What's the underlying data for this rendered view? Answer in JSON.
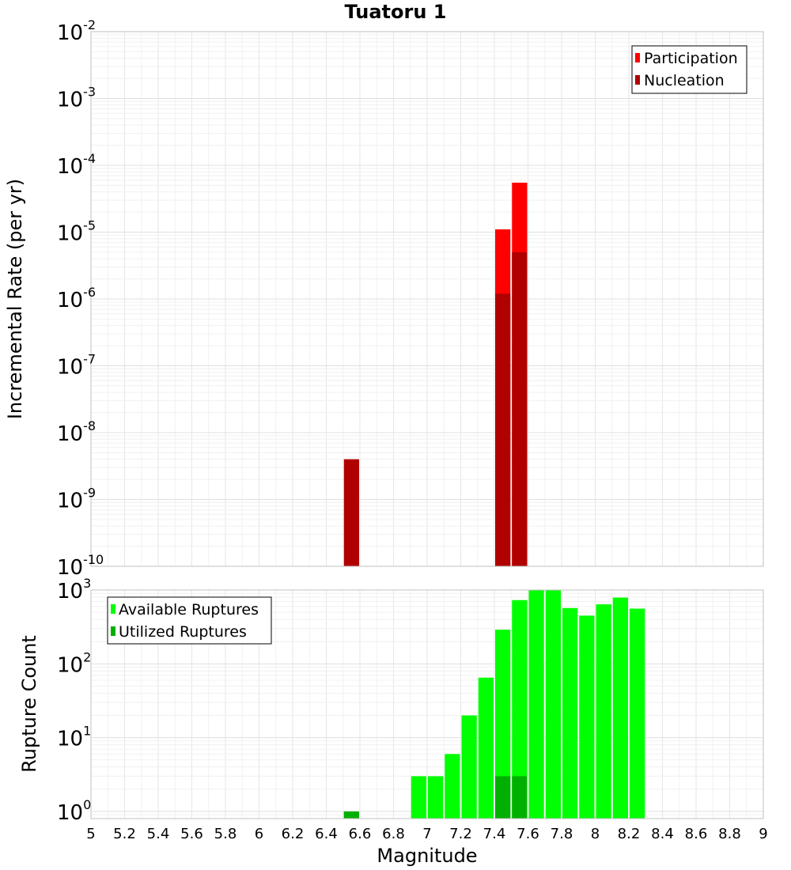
{
  "chart_data": [
    {
      "type": "bar",
      "title": "Tuatoru 1",
      "ylabel": "Incremental Rate (per yr)",
      "yscale": "log",
      "ylim": [
        1e-10,
        0.01
      ],
      "xlim": [
        5,
        9
      ],
      "bin_width": 0.1,
      "y_ticks": [
        {
          "base": "10",
          "exp": "-2",
          "value": 0.01
        },
        {
          "base": "10",
          "exp": "-3",
          "value": 0.001
        },
        {
          "base": "10",
          "exp": "-4",
          "value": 0.0001
        },
        {
          "base": "10",
          "exp": "-5",
          "value": 1e-05
        },
        {
          "base": "10",
          "exp": "-6",
          "value": 1e-06
        },
        {
          "base": "10",
          "exp": "-7",
          "value": 1e-07
        },
        {
          "base": "10",
          "exp": "-8",
          "value": 1e-08
        },
        {
          "base": "10",
          "exp": "-9",
          "value": 1e-09
        },
        {
          "base": "10",
          "exp": "-10",
          "value": 1e-10
        }
      ],
      "legend_position": "top-right",
      "series": [
        {
          "name": "Participation",
          "color": "#ff0000",
          "points": [
            {
              "x": 7.45,
              "y": 1.1e-05
            },
            {
              "x": 7.55,
              "y": 5.5e-05
            }
          ]
        },
        {
          "name": "Nucleation",
          "color": "#b00000",
          "points": [
            {
              "x": 6.55,
              "y": 4e-09
            },
            {
              "x": 7.45,
              "y": 1.2e-06
            },
            {
              "x": 7.55,
              "y": 5e-06
            }
          ]
        }
      ]
    },
    {
      "type": "bar",
      "xlabel": "Magnitude",
      "ylabel": "Rupture Count",
      "yscale": "log",
      "ylim": [
        0.8,
        1000
      ],
      "xlim": [
        5,
        9
      ],
      "bin_width": 0.1,
      "y_ticks": [
        {
          "base": "10",
          "exp": "3",
          "value": 1000
        },
        {
          "base": "10",
          "exp": "2",
          "value": 100
        },
        {
          "base": "10",
          "exp": "1",
          "value": 10
        },
        {
          "base": "10",
          "exp": "0",
          "value": 1
        }
      ],
      "x_ticks": [
        "5",
        "5.2",
        "5.4",
        "5.6",
        "5.8",
        "6",
        "6.2",
        "6.4",
        "6.6",
        "6.8",
        "7",
        "7.2",
        "7.4",
        "7.6",
        "7.8",
        "8",
        "8.2",
        "8.4",
        "8.6",
        "8.8",
        "9"
      ],
      "legend_position": "top-left",
      "series": [
        {
          "name": "Available Ruptures",
          "color": "#00ff00",
          "points": [
            {
              "x": 6.55,
              "y": 1
            },
            {
              "x": 6.95,
              "y": 3
            },
            {
              "x": 7.05,
              "y": 3
            },
            {
              "x": 7.15,
              "y": 6
            },
            {
              "x": 7.25,
              "y": 20
            },
            {
              "x": 7.35,
              "y": 65
            },
            {
              "x": 7.45,
              "y": 290
            },
            {
              "x": 7.55,
              "y": 730
            },
            {
              "x": 7.65,
              "y": 1000
            },
            {
              "x": 7.75,
              "y": 990
            },
            {
              "x": 7.85,
              "y": 570
            },
            {
              "x": 7.95,
              "y": 450
            },
            {
              "x": 8.05,
              "y": 640
            },
            {
              "x": 8.15,
              "y": 790
            },
            {
              "x": 8.25,
              "y": 560
            }
          ]
        },
        {
          "name": "Utilized Ruptures",
          "color": "#00b000",
          "points": [
            {
              "x": 6.55,
              "y": 1
            },
            {
              "x": 7.45,
              "y": 3
            },
            {
              "x": 7.55,
              "y": 3
            }
          ]
        }
      ]
    }
  ]
}
